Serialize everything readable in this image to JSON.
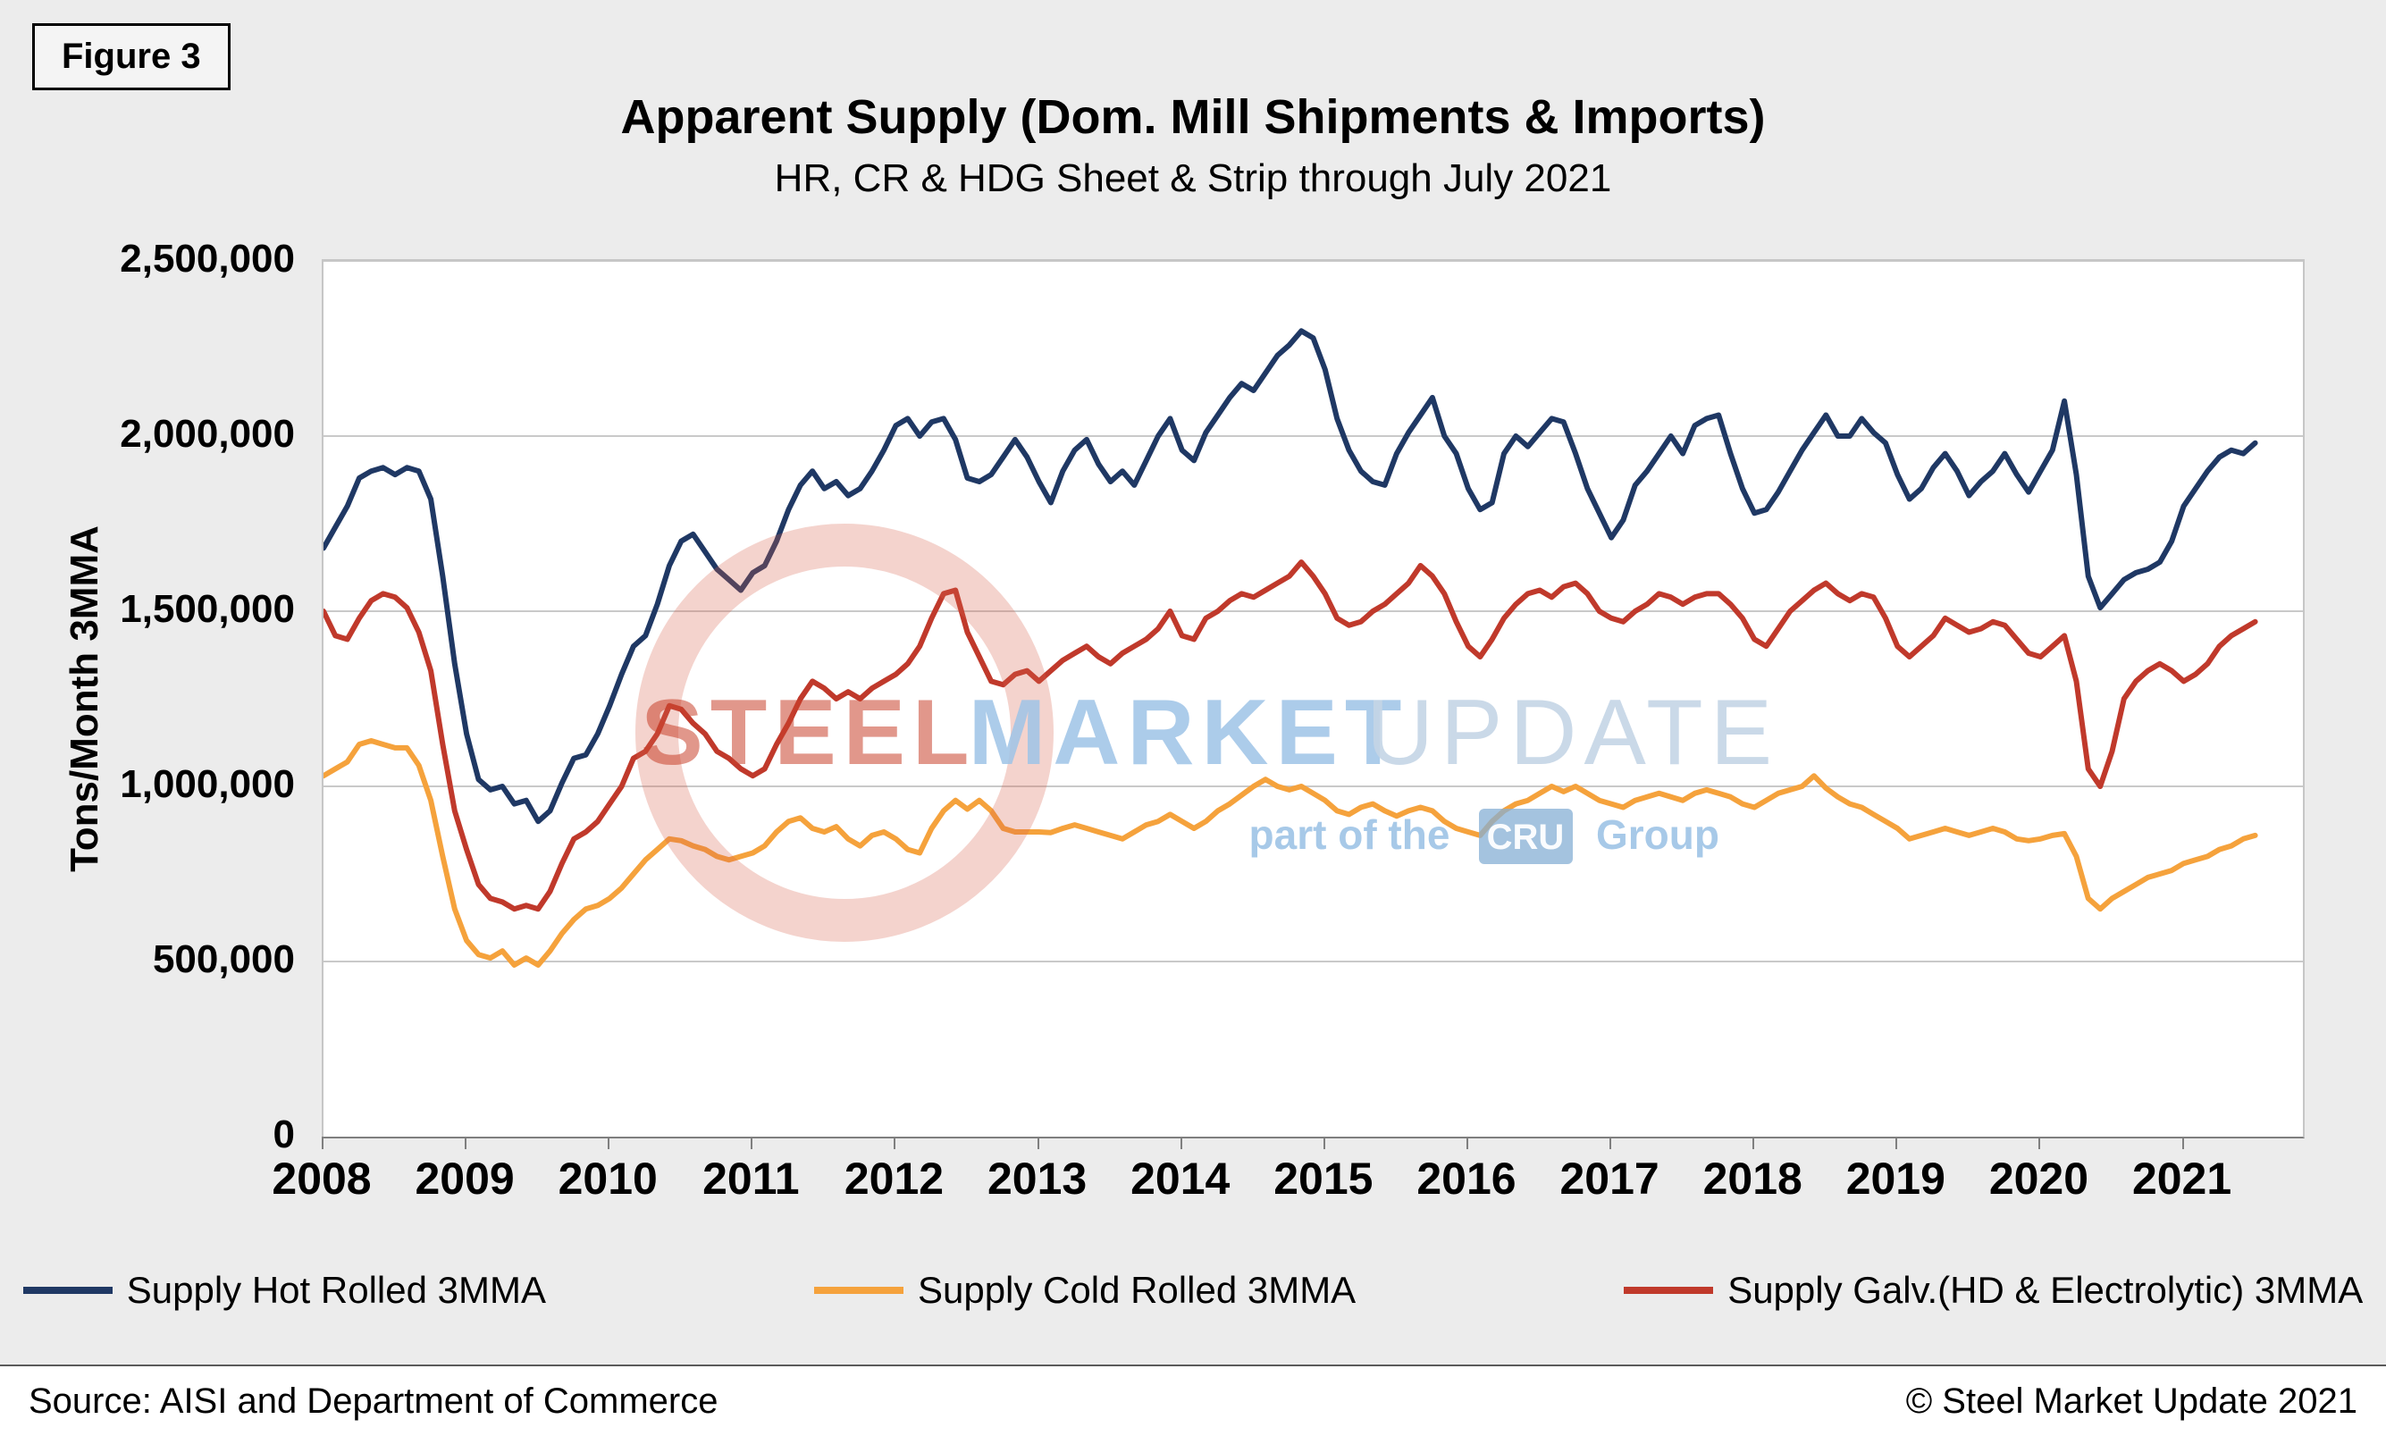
{
  "figure_label": "Figure 3",
  "title": "Apparent Supply (Dom. Mill Shipments & Imports)",
  "subtitle": "HR, CR & HDG Sheet & Strip through July 2021",
  "footer": {
    "source": "Source: AISI and Department of Commerce",
    "copyright": "© Steel Market Update 2021"
  },
  "watermark": {
    "word1": "STEEL",
    "word2": "MARKET",
    "word3": "UPDATE",
    "tagline_pre": "part of the",
    "tagline_box": "CRU",
    "tagline_post": "Group",
    "red": "#C8412C",
    "blue": "#9DC3E6",
    "light_blue": "#C4D5E5"
  },
  "chart_data": {
    "type": "line",
    "title": "Apparent Supply (Dom. Mill Shipments & Imports)",
    "subtitle": "HR, CR & HDG Sheet & Strip through July 2021",
    "xlabel": "",
    "ylabel": "Tons/Month 3MMA",
    "ylim": [
      0,
      2500000
    ],
    "ytick_step": 500000,
    "ytick_labels": [
      "0",
      "500,000",
      "1,000,000",
      "1,500,000",
      "2,000,000",
      "2,500,000"
    ],
    "grid": true,
    "legend_position": "bottom",
    "x_start": "2008-01",
    "x_end": "2021-07",
    "x_years": [
      2008,
      2009,
      2010,
      2011,
      2012,
      2013,
      2014,
      2015,
      2016,
      2017,
      2018,
      2019,
      2020,
      2021
    ],
    "gridline_color": "#C9C9C9",
    "series": [
      {
        "name": "Supply Hot Rolled 3MMA",
        "color": "#1F3864",
        "values": [
          1680000,
          1740000,
          1800000,
          1880000,
          1900000,
          1910000,
          1890000,
          1910000,
          1900000,
          1820000,
          1600000,
          1350000,
          1150000,
          1020000,
          990000,
          1000000,
          950000,
          960000,
          900000,
          930000,
          1010000,
          1080000,
          1090000,
          1150000,
          1230000,
          1320000,
          1400000,
          1430000,
          1520000,
          1630000,
          1700000,
          1720000,
          1670000,
          1620000,
          1590000,
          1560000,
          1610000,
          1630000,
          1700000,
          1790000,
          1860000,
          1900000,
          1850000,
          1870000,
          1830000,
          1850000,
          1900000,
          1960000,
          2030000,
          2050000,
          2000000,
          2040000,
          2050000,
          1990000,
          1880000,
          1870000,
          1890000,
          1940000,
          1990000,
          1940000,
          1870000,
          1810000,
          1900000,
          1960000,
          1990000,
          1920000,
          1870000,
          1900000,
          1860000,
          1930000,
          2000000,
          2050000,
          1960000,
          1930000,
          2010000,
          2060000,
          2110000,
          2150000,
          2130000,
          2180000,
          2230000,
          2260000,
          2300000,
          2280000,
          2190000,
          2050000,
          1960000,
          1900000,
          1870000,
          1860000,
          1950000,
          2010000,
          2060000,
          2110000,
          2000000,
          1950000,
          1850000,
          1790000,
          1810000,
          1950000,
          2000000,
          1970000,
          2010000,
          2050000,
          2040000,
          1950000,
          1850000,
          1780000,
          1710000,
          1760000,
          1860000,
          1900000,
          1950000,
          2000000,
          1950000,
          2030000,
          2050000,
          2060000,
          1950000,
          1850000,
          1780000,
          1790000,
          1840000,
          1900000,
          1960000,
          2010000,
          2060000,
          2000000,
          2000000,
          2050000,
          2010000,
          1980000,
          1890000,
          1820000,
          1850000,
          1910000,
          1950000,
          1900000,
          1830000,
          1870000,
          1900000,
          1950000,
          1890000,
          1840000,
          1900000,
          1960000,
          2100000,
          1890000,
          1600000,
          1510000,
          1550000,
          1590000,
          1610000,
          1620000,
          1640000,
          1700000,
          1800000,
          1850000,
          1900000,
          1940000,
          1960000,
          1950000,
          1980000
        ]
      },
      {
        "name": "Supply Cold Rolled 3MMA",
        "color": "#F5A23C",
        "values": [
          1030000,
          1050000,
          1070000,
          1120000,
          1130000,
          1120000,
          1110000,
          1110000,
          1060000,
          960000,
          800000,
          650000,
          560000,
          520000,
          510000,
          530000,
          490000,
          510000,
          490000,
          530000,
          580000,
          620000,
          650000,
          660000,
          680000,
          710000,
          750000,
          790000,
          820000,
          850000,
          845000,
          830000,
          820000,
          800000,
          790000,
          800000,
          810000,
          830000,
          870000,
          900000,
          910000,
          880000,
          870000,
          885000,
          850000,
          830000,
          860000,
          870000,
          850000,
          820000,
          810000,
          880000,
          930000,
          960000,
          935000,
          960000,
          930000,
          880000,
          870000,
          870000,
          870000,
          868000,
          880000,
          890000,
          880000,
          870000,
          860000,
          850000,
          870000,
          890000,
          900000,
          920000,
          900000,
          880000,
          900000,
          930000,
          950000,
          975000,
          1000000,
          1020000,
          1000000,
          990000,
          1000000,
          980000,
          960000,
          930000,
          920000,
          940000,
          950000,
          930000,
          915000,
          930000,
          940000,
          930000,
          900000,
          880000,
          870000,
          860000,
          900000,
          930000,
          950000,
          960000,
          980000,
          1000000,
          985000,
          1000000,
          980000,
          960000,
          950000,
          940000,
          960000,
          970000,
          980000,
          970000,
          960000,
          980000,
          990000,
          980000,
          970000,
          950000,
          940000,
          960000,
          980000,
          990000,
          1000000,
          1030000,
          995000,
          970000,
          950000,
          940000,
          920000,
          900000,
          880000,
          850000,
          860000,
          870000,
          880000,
          870000,
          860000,
          870000,
          880000,
          870000,
          850000,
          845000,
          850000,
          860000,
          865000,
          800000,
          680000,
          650000,
          680000,
          700000,
          720000,
          740000,
          750000,
          760000,
          780000,
          790000,
          800000,
          820000,
          830000,
          850000,
          860000
        ]
      },
      {
        "name": "Supply Galv.(HD & Electrolytic) 3MMA",
        "color": "#C0392B",
        "values": [
          1500000,
          1430000,
          1420000,
          1480000,
          1530000,
          1550000,
          1540000,
          1510000,
          1440000,
          1330000,
          1120000,
          930000,
          820000,
          720000,
          680000,
          670000,
          650000,
          660000,
          650000,
          700000,
          780000,
          850000,
          870000,
          900000,
          950000,
          1000000,
          1080000,
          1100000,
          1150000,
          1230000,
          1220000,
          1180000,
          1150000,
          1100000,
          1080000,
          1050000,
          1030000,
          1050000,
          1120000,
          1180000,
          1250000,
          1300000,
          1280000,
          1250000,
          1270000,
          1250000,
          1280000,
          1300000,
          1320000,
          1350000,
          1400000,
          1480000,
          1550000,
          1560000,
          1440000,
          1370000,
          1300000,
          1290000,
          1320000,
          1330000,
          1300000,
          1330000,
          1360000,
          1380000,
          1400000,
          1370000,
          1350000,
          1380000,
          1400000,
          1420000,
          1450000,
          1500000,
          1430000,
          1420000,
          1480000,
          1500000,
          1530000,
          1550000,
          1540000,
          1560000,
          1580000,
          1600000,
          1640000,
          1600000,
          1550000,
          1480000,
          1460000,
          1470000,
          1500000,
          1520000,
          1550000,
          1580000,
          1630000,
          1600000,
          1550000,
          1470000,
          1400000,
          1370000,
          1420000,
          1480000,
          1520000,
          1550000,
          1560000,
          1540000,
          1570000,
          1580000,
          1550000,
          1500000,
          1480000,
          1470000,
          1500000,
          1520000,
          1550000,
          1540000,
          1520000,
          1540000,
          1550000,
          1550000,
          1520000,
          1480000,
          1420000,
          1400000,
          1450000,
          1500000,
          1530000,
          1560000,
          1580000,
          1550000,
          1530000,
          1550000,
          1540000,
          1480000,
          1400000,
          1370000,
          1400000,
          1430000,
          1480000,
          1460000,
          1440000,
          1450000,
          1470000,
          1460000,
          1420000,
          1380000,
          1370000,
          1400000,
          1430000,
          1300000,
          1050000,
          1000000,
          1100000,
          1250000,
          1300000,
          1330000,
          1350000,
          1330000,
          1300000,
          1320000,
          1350000,
          1400000,
          1430000,
          1450000,
          1470000
        ]
      }
    ]
  }
}
